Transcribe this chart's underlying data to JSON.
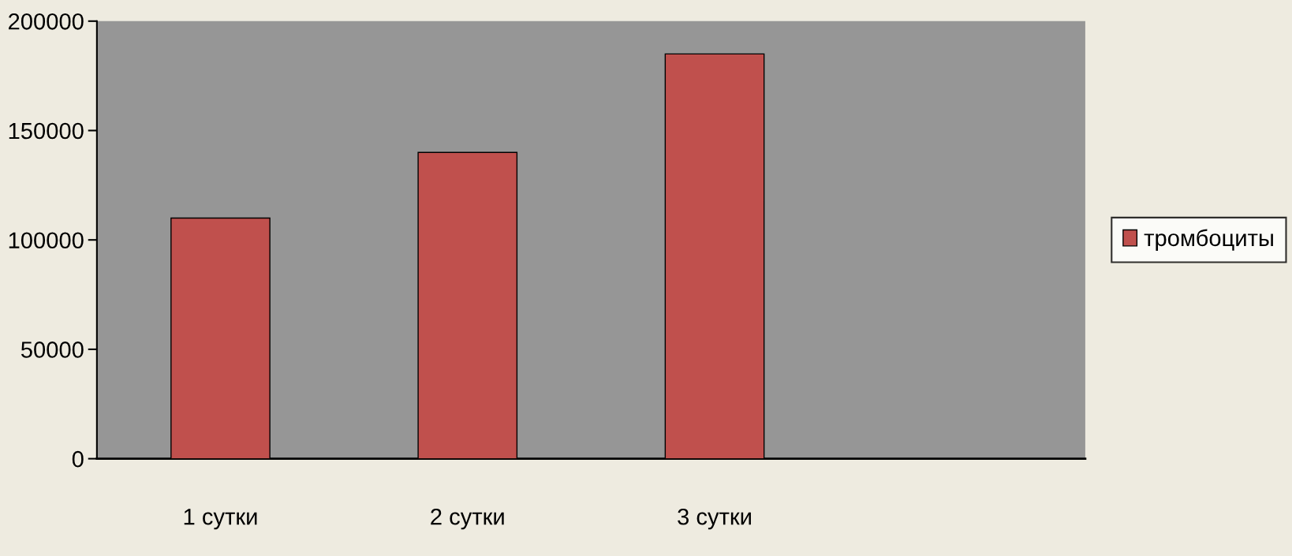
{
  "chart_data": {
    "type": "bar",
    "categories": [
      "1 сутки",
      "2 сутки",
      "3 сутки",
      null
    ],
    "series": [
      {
        "name": "тромбоциты",
        "color": "#c0504d",
        "values": [
          110000,
          140000,
          185000,
          null
        ]
      }
    ],
    "ylim": [
      0,
      200000
    ],
    "yticks": [
      0,
      50000,
      100000,
      150000,
      200000
    ],
    "grid": false,
    "legend": "right"
  }
}
